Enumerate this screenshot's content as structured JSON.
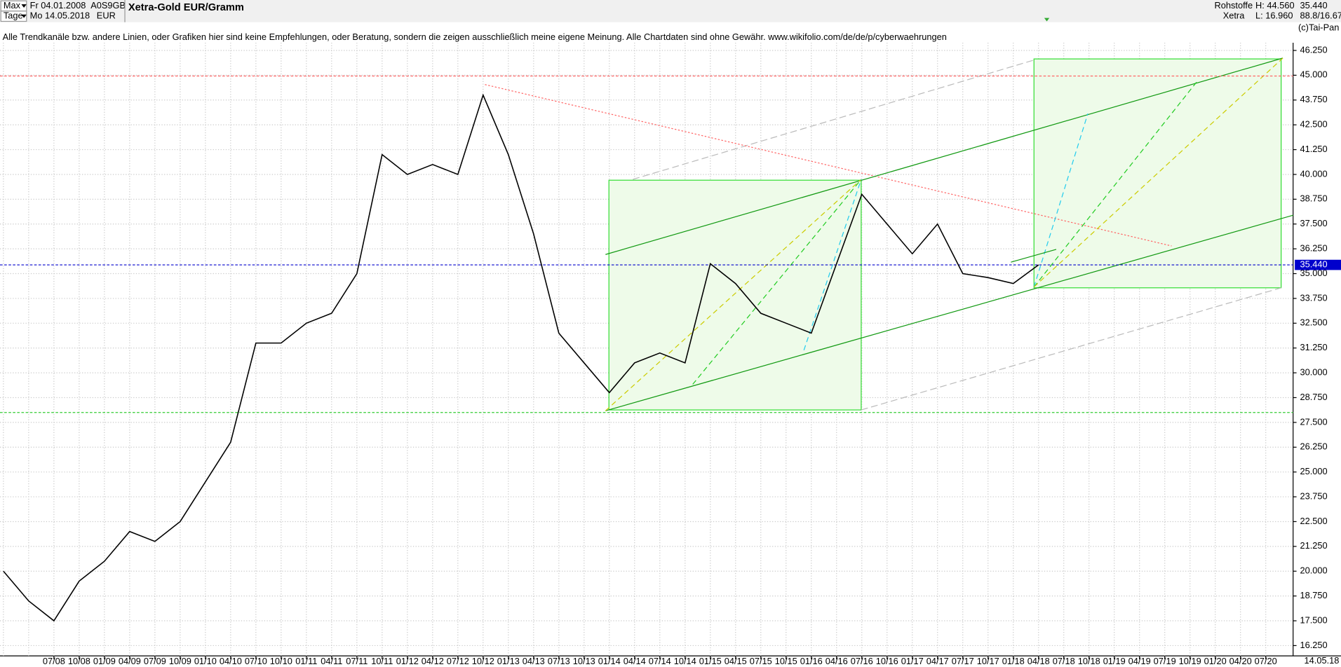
{
  "header": {
    "range": "Max",
    "unit": "Tage",
    "date_from": "Fr 04.01.2008",
    "date_to": "Mo 14.05.2018",
    "wkn": "A0S9GB",
    "currency": "EUR",
    "title": "Xetra-Gold EUR/Gramm",
    "sector": "Rohstoffe",
    "exchange": "Xetra",
    "high": "H: 44.560",
    "low": "L: 16.960",
    "last": "35.440",
    "ratio": "88.8/16.67",
    "copyright": "(c)Tai-Pan",
    "disclaimer": "Alle Trendkanäle bzw. andere Linien, oder Grafiken hier sind keine Empfehlungen, oder Beratung, sondern die zeigen ausschließlich meine eigene Meinung. Alle Chartdaten sind ohne Gewähr.  www.wikifolio.com/de/de/p/cyberwaehrungen",
    "last_date": "14.05.18"
  },
  "chart_data": {
    "type": "line",
    "categories": [
      null,
      null,
      "07/08",
      "10/08",
      "01/09",
      "04/09",
      "07/09",
      "10/09",
      "01/10",
      "04/10",
      "07/10",
      "10/10",
      "01/11",
      "04/11",
      "07/11",
      "10/11",
      "01/12",
      "04/12",
      "07/12",
      "10/12",
      "01/13",
      "04/13",
      "07/13",
      "10/13",
      "01/14",
      "04/14",
      "07/14",
      "10/14",
      "01/15",
      "04/15",
      "07/15",
      "10/15",
      "01/16",
      "04/16",
      "07/16",
      "10/16",
      "01/17",
      "04/17",
      "07/17",
      "10/17",
      "01/18",
      "04/18",
      "07/18",
      "10/18",
      "01/19",
      "04/19",
      "07/19",
      "10/19",
      "01/20",
      "04/20",
      "07/20"
    ],
    "series": [
      {
        "name": "Xetra-Gold EUR/Gramm",
        "color": "#000000",
        "values": [
          20.0,
          18.5,
          17.5,
          19.5,
          20.5,
          22.0,
          21.5,
          22.5,
          24.5,
          26.5,
          31.5,
          31.5,
          32.5,
          33.0,
          35.0,
          41.0,
          40.0,
          40.5,
          40.0,
          44.0,
          41.0,
          37.0,
          32.0,
          30.5,
          29.0,
          30.5,
          31.0,
          30.5,
          35.5,
          34.5,
          33.0,
          32.5,
          32.0,
          35.5,
          39.0,
          37.5,
          36.0,
          37.5,
          35.0,
          34.8,
          34.5,
          35.44,
          null,
          null,
          null,
          null,
          null,
          null,
          null,
          null,
          null
        ]
      }
    ],
    "ylim": [
      15.73,
      46.64
    ],
    "yticks": [
      {
        "value": 16.25,
        "label": "16.250"
      },
      {
        "value": 17.5,
        "label": "17.500"
      },
      {
        "value": 18.75,
        "label": "18.750"
      },
      {
        "value": 20,
        "label": "20.000"
      },
      {
        "value": 21.25,
        "label": "21.250"
      },
      {
        "value": 22.5,
        "label": "22.500"
      },
      {
        "value": 23.75,
        "label": "23.750"
      },
      {
        "value": 25,
        "label": "25.000"
      },
      {
        "value": 26.25,
        "label": "26.250"
      },
      {
        "value": 27.5,
        "label": "27.500"
      },
      {
        "value": 28.75,
        "label": "28.750"
      },
      {
        "value": 30,
        "label": "30.000"
      },
      {
        "value": 31.25,
        "label": "31.250"
      },
      {
        "value": 32.5,
        "label": "32.500"
      },
      {
        "value": 33.75,
        "label": "33.750"
      },
      {
        "value": 35,
        "label": "35.000"
      },
      {
        "value": 36.25,
        "label": "36.250"
      },
      {
        "value": 37.5,
        "label": "37.500"
      },
      {
        "value": 38.75,
        "label": "38.750"
      },
      {
        "value": 40,
        "label": "40.000"
      },
      {
        "value": 41.25,
        "label": "41.250"
      },
      {
        "value": 42.5,
        "label": "42.500"
      },
      {
        "value": 43.75,
        "label": "43.750"
      },
      {
        "value": 45,
        "label": "45.000"
      },
      {
        "value": 46.25,
        "label": "46.250"
      }
    ],
    "grid": true,
    "reference_lines": [
      {
        "value": 35.44,
        "color": "#0000cc",
        "label": "35.440"
      },
      {
        "value": 44.96,
        "color": "#ff6666"
      },
      {
        "value": 28.0,
        "color": "#33cc33"
      }
    ]
  }
}
